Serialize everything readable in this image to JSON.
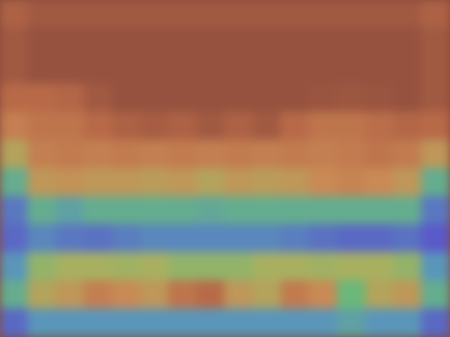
{
  "chart_data": {
    "type": "heatmap",
    "tick_labels": false,
    "color_range": [
      0,
      1
    ],
    "cells": [
      [
        0.85,
        0.9,
        0.9,
        0.9,
        0.9,
        0.9,
        0.9,
        0.9,
        0.9,
        0.9,
        0.9,
        0.9,
        0.9,
        0.9,
        0.9,
        0.85
      ],
      [
        0.9,
        0.95,
        0.95,
        0.95,
        0.95,
        0.95,
        0.95,
        0.95,
        0.95,
        0.95,
        0.95,
        0.95,
        0.95,
        0.95,
        0.95,
        0.9
      ],
      [
        0.9,
        0.95,
        0.95,
        0.95,
        0.95,
        0.95,
        0.95,
        0.95,
        0.95,
        0.95,
        0.95,
        0.95,
        0.95,
        0.95,
        0.95,
        0.9
      ],
      [
        0.8,
        0.8,
        0.82,
        0.9,
        0.95,
        0.95,
        0.95,
        0.95,
        0.95,
        0.95,
        0.95,
        0.93,
        0.92,
        0.93,
        0.95,
        0.9
      ],
      [
        0.7,
        0.75,
        0.75,
        0.8,
        0.85,
        0.88,
        0.85,
        0.9,
        0.85,
        0.9,
        0.8,
        0.75,
        0.75,
        0.78,
        0.82,
        0.8
      ],
      [
        0.55,
        0.7,
        0.72,
        0.7,
        0.72,
        0.7,
        0.72,
        0.7,
        0.72,
        0.7,
        0.72,
        0.7,
        0.72,
        0.75,
        0.72,
        0.6
      ],
      [
        0.3,
        0.6,
        0.62,
        0.6,
        0.6,
        0.58,
        0.6,
        0.55,
        0.6,
        0.58,
        0.6,
        0.65,
        0.68,
        0.65,
        0.6,
        0.3
      ],
      [
        0.1,
        0.3,
        0.25,
        0.3,
        0.3,
        0.3,
        0.3,
        0.28,
        0.3,
        0.3,
        0.3,
        0.3,
        0.3,
        0.3,
        0.3,
        0.1
      ],
      [
        0.05,
        0.15,
        0.1,
        0.08,
        0.12,
        0.15,
        0.15,
        0.15,
        0.15,
        0.15,
        0.12,
        0.08,
        0.05,
        0.05,
        0.08,
        0.0
      ],
      [
        0.2,
        0.45,
        0.5,
        0.5,
        0.48,
        0.5,
        0.45,
        0.45,
        0.45,
        0.5,
        0.5,
        0.48,
        0.5,
        0.5,
        0.45,
        0.2
      ],
      [
        0.3,
        0.55,
        0.6,
        0.7,
        0.65,
        0.6,
        0.75,
        0.8,
        0.6,
        0.55,
        0.72,
        0.65,
        0.35,
        0.55,
        0.6,
        0.3
      ],
      [
        0.05,
        0.2,
        0.2,
        0.2,
        0.2,
        0.2,
        0.2,
        0.2,
        0.2,
        0.2,
        0.2,
        0.2,
        0.25,
        0.2,
        0.2,
        0.05
      ]
    ]
  }
}
